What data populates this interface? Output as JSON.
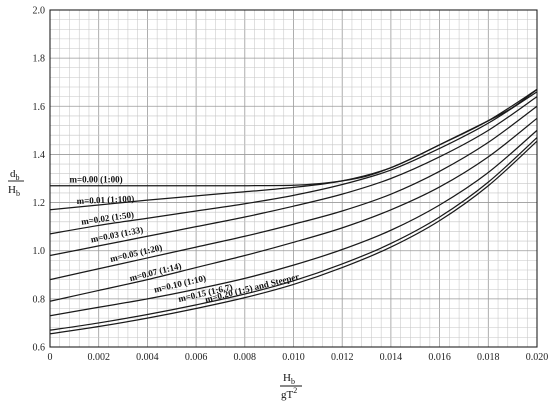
{
  "chart_data": {
    "type": "line",
    "title": "",
    "xlabel": {
      "top": "H",
      "top_sub": "b",
      "bottom": "gT",
      "bottom_sup": "2"
    },
    "ylabel": {
      "top": "d",
      "top_sub": "b",
      "bottom": "H",
      "bottom_sub": "b"
    },
    "xlim": [
      0,
      0.02
    ],
    "ylim": [
      0.6,
      2.0
    ],
    "x_ticks": [
      0,
      0.002,
      0.004,
      0.006,
      0.008,
      0.01,
      0.012,
      0.014,
      0.016,
      0.018,
      0.02
    ],
    "x_tick_labels": [
      "0",
      "0.002",
      "0.004",
      "0.006",
      "0.008",
      "0.010",
      "0.012",
      "0.014",
      "0.016",
      "0.018",
      "0.020"
    ],
    "y_ticks": [
      0.6,
      0.8,
      1.0,
      1.2,
      1.4,
      1.6,
      1.8,
      2.0
    ],
    "y_tick_labels": [
      "0.6",
      "0.8",
      "1.0",
      "1.2",
      "1.4",
      "1.6",
      "1.8",
      "2.0"
    ],
    "grid": true,
    "legend": "inline labels",
    "series": [
      {
        "name": "m=0.00 (1:00)",
        "x": [
          0,
          0.002,
          0.004,
          0.006,
          0.008,
          0.01,
          0.011,
          0.012,
          0.013,
          0.014,
          0.015,
          0.016,
          0.017,
          0.018,
          0.019,
          0.02
        ],
        "y": [
          1.27,
          1.27,
          1.27,
          1.27,
          1.27,
          1.272,
          1.278,
          1.29,
          1.31,
          1.345,
          1.39,
          1.44,
          1.49,
          1.54,
          1.595,
          1.67
        ]
      },
      {
        "name": "m=0.01 (1:100)",
        "x": [
          0,
          0.002,
          0.004,
          0.006,
          0.008,
          0.01,
          0.012,
          0.014,
          0.016,
          0.018,
          0.02
        ],
        "y": [
          1.17,
          1.19,
          1.21,
          1.228,
          1.245,
          1.263,
          1.29,
          1.345,
          1.44,
          1.54,
          1.67
        ]
      },
      {
        "name": "m=0.02 (1:50)",
        "x": [
          0,
          0.002,
          0.004,
          0.006,
          0.008,
          0.01,
          0.012,
          0.014,
          0.016,
          0.018,
          0.02
        ],
        "y": [
          1.07,
          1.105,
          1.135,
          1.165,
          1.195,
          1.23,
          1.275,
          1.335,
          1.425,
          1.53,
          1.66
        ]
      },
      {
        "name": "m=0.03 (1:33)",
        "x": [
          0,
          0.002,
          0.004,
          0.006,
          0.008,
          0.01,
          0.012,
          0.014,
          0.016,
          0.018,
          0.02
        ],
        "y": [
          0.98,
          1.02,
          1.06,
          1.1,
          1.14,
          1.185,
          1.235,
          1.3,
          1.39,
          1.5,
          1.64
        ]
      },
      {
        "name": "m=0.05 (1:20)",
        "x": [
          0,
          0.002,
          0.004,
          0.006,
          0.008,
          0.01,
          0.012,
          0.014,
          0.016,
          0.018,
          0.02
        ],
        "y": [
          0.88,
          0.925,
          0.97,
          1.015,
          1.06,
          1.11,
          1.165,
          1.235,
          1.33,
          1.45,
          1.6
        ]
      },
      {
        "name": "m=0.07 (1:14)",
        "x": [
          0,
          0.002,
          0.004,
          0.006,
          0.008,
          0.01,
          0.012,
          0.014,
          0.016,
          0.018,
          0.02
        ],
        "y": [
          0.79,
          0.835,
          0.88,
          0.93,
          0.98,
          1.035,
          1.095,
          1.17,
          1.265,
          1.39,
          1.55
        ]
      },
      {
        "name": "m=0.10 (1:10)",
        "x": [
          0,
          0.002,
          0.004,
          0.006,
          0.008,
          0.01,
          0.012,
          0.014,
          0.016,
          0.018,
          0.02
        ],
        "y": [
          0.73,
          0.765,
          0.8,
          0.84,
          0.885,
          0.94,
          1.005,
          1.085,
          1.19,
          1.325,
          1.5
        ]
      },
      {
        "name": "m=0.15 (1:6.7)",
        "x": [
          0,
          0.002,
          0.004,
          0.006,
          0.008,
          0.01,
          0.012,
          0.014,
          0.016,
          0.018,
          0.02
        ],
        "y": [
          0.67,
          0.7,
          0.735,
          0.775,
          0.82,
          0.875,
          0.945,
          1.03,
          1.14,
          1.285,
          1.47
        ]
      },
      {
        "name": "m=0.20 (1:5) and Steeper",
        "x": [
          0,
          0.002,
          0.004,
          0.006,
          0.008,
          0.01,
          0.012,
          0.014,
          0.016,
          0.018,
          0.02
        ],
        "y": [
          0.655,
          0.685,
          0.72,
          0.76,
          0.805,
          0.86,
          0.93,
          1.015,
          1.125,
          1.27,
          1.455
        ]
      }
    ],
    "labels": [
      {
        "series": 0,
        "text": "m=0.00 (1:00)",
        "x": 0.0008,
        "y": 1.283,
        "angle": 0
      },
      {
        "series": 1,
        "text": "m=0.01 (1:100)",
        "x": 0.0011,
        "y": 1.194,
        "angle": -2.5
      },
      {
        "series": 2,
        "text": "m=0.02 (1:50)",
        "x": 0.0013,
        "y": 1.108,
        "angle": -8
      },
      {
        "series": 3,
        "text": "m=0.03 (1:33)",
        "x": 0.0017,
        "y": 1.034,
        "angle": -11
      },
      {
        "series": 4,
        "text": "m=0.05 (1:20)",
        "x": 0.0025,
        "y": 0.953,
        "angle": -13
      },
      {
        "series": 5,
        "text": "m=0.07 (1:14)",
        "x": 0.0033,
        "y": 0.873,
        "angle": -14
      },
      {
        "series": 6,
        "text": "m=0.10 (1:10)",
        "x": 0.0043,
        "y": 0.826,
        "angle": -13
      },
      {
        "series": 7,
        "text": "m=0.15 (1:6.7)",
        "x": 0.0053,
        "y": 0.787,
        "angle": -13
      },
      {
        "series": 8,
        "text": "m=0.20 (1:5) and Steeper",
        "x": 0.0064,
        "y": 0.785,
        "angle": -14
      }
    ]
  }
}
